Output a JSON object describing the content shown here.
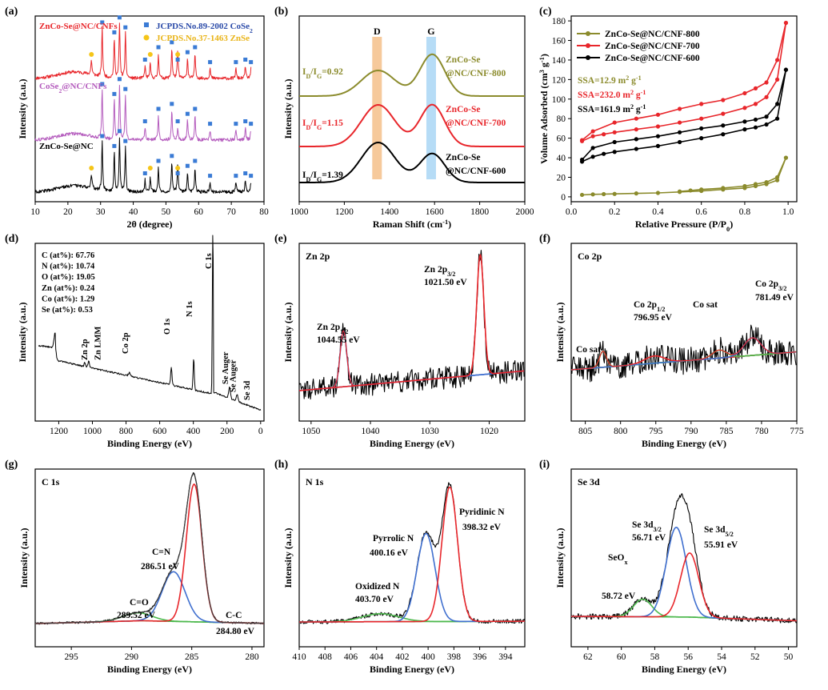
{
  "colors": {
    "black": "#000000",
    "red": "#e8262b",
    "purple": "#b45bbd",
    "olive": "#8b8b2c",
    "blue": "#3f6fcf",
    "green": "#4cb84c",
    "navy": "#2a4aa8",
    "marker_blue": "#3a7bd5",
    "marker_yellow": "#f5c518",
    "orange_band": "#f5c08a",
    "blue_band": "#a9d6f5"
  },
  "panels": {
    "a": {
      "label": "(a)",
      "xlabel": "2θ (degree)",
      "ylabel": "Intensity (a.u.)",
      "xticks": [
        "10",
        "20",
        "30",
        "40",
        "50",
        "60",
        "70",
        "80"
      ],
      "xlim": [
        10,
        80
      ],
      "legend": [
        {
          "text": "JCPDS.No.89-2002 CoSe",
          "sub": "2",
          "marker": "square"
        },
        {
          "text": "JCPDS.No.37-1463 ZnSe",
          "sub": "",
          "marker": "circle"
        }
      ],
      "series": [
        {
          "name": "ZnCo-Se@NC/CNFs",
          "color_key": "red"
        },
        {
          "name": "CoSe",
          "name_sub": "2",
          "name_tail": "@NC/CNFs",
          "color_key": "purple"
        },
        {
          "name": "ZnCo-Se@NC",
          "color_key": "black"
        }
      ],
      "peaks_cose2": [
        30.5,
        34.2,
        35.8,
        37.6,
        43.6,
        47.7,
        51.8,
        53.6,
        56.6,
        58.9,
        63.5,
        71.4,
        74.3,
        76.0
      ],
      "peaks_znse": [
        27.2,
        45.2,
        53.6
      ]
    },
    "b": {
      "label": "(b)",
      "xlabel": "Raman Shift (cm",
      "xlabel_sup": "-1",
      "xlabel_tail": ")",
      "ylabel": "Intensity (a.u.)",
      "xticks": [
        "1000",
        "1200",
        "1400",
        "1600",
        "1800",
        "2000"
      ],
      "xlim": [
        1000,
        2000
      ],
      "bands": [
        "D",
        "G"
      ],
      "band_centers": [
        1345,
        1585
      ],
      "ratio_prefix": "I",
      "ratio_sub_d": "D",
      "ratio_sub_g": "G",
      "series": [
        {
          "line1": "ZnCo-Se",
          "line2": "@NC/CNF-800",
          "ratio": "=0.92",
          "color_key": "olive"
        },
        {
          "line1": "ZnCo-Se",
          "line2": "@NC/CNF-700",
          "ratio": "=1.15",
          "color_key": "red"
        },
        {
          "line1": "ZnCo-Se",
          "line2": "@NC/CNF-600",
          "ratio": "=1.39",
          "color_key": "black"
        }
      ]
    },
    "c": {
      "label": "(c)",
      "xlabel": "Relative Pressure (P/P",
      "xlabel_sub": "0",
      "xlabel_tail": ")",
      "ylabel": "Volume Adsorbed (cm",
      "ylabel_sup": "3",
      "ylabel_mid": " g",
      "ylabel_sup2": "-1",
      "ylabel_tail": ")",
      "xticks": [
        "0.0",
        "0.2",
        "0.4",
        "0.6",
        "0.8",
        "1.0"
      ],
      "yticks": [
        "0",
        "20",
        "40",
        "60",
        "80",
        "100",
        "120",
        "140",
        "160",
        "180"
      ],
      "xlim": [
        0,
        1.04
      ],
      "ylim": [
        -5,
        185
      ],
      "series": [
        {
          "name": "ZnCo-Se@NC/CNF-800",
          "color_key": "olive",
          "ssa": "SSA=12.9 m",
          "ssa_sup": "2",
          "ssa_mid": " g",
          "ssa_sup2": "-1",
          "ads": [
            [
              0.05,
              2
            ],
            [
              0.1,
              2.5
            ],
            [
              0.15,
              2.8
            ],
            [
              0.2,
              3
            ],
            [
              0.3,
              3.5
            ],
            [
              0.4,
              4
            ],
            [
              0.5,
              5
            ],
            [
              0.6,
              6
            ],
            [
              0.7,
              7.5
            ],
            [
              0.8,
              9
            ],
            [
              0.85,
              11
            ],
            [
              0.9,
              13
            ],
            [
              0.95,
              17
            ],
            [
              0.99,
              40
            ]
          ],
          "des": [
            [
              0.99,
              40
            ],
            [
              0.95,
              20
            ],
            [
              0.9,
              15
            ],
            [
              0.85,
              13
            ],
            [
              0.8,
              11
            ],
            [
              0.7,
              9
            ],
            [
              0.6,
              7.5
            ],
            [
              0.55,
              6.5
            ],
            [
              0.5,
              5.5
            ]
          ]
        },
        {
          "name": "ZnCo-Se@NC/CNF-700",
          "color_key": "red",
          "ssa": "SSA=232.0 m",
          "ssa_sup": "2",
          "ssa_mid": " g",
          "ssa_sup2": "-1",
          "ads": [
            [
              0.05,
              57
            ],
            [
              0.1,
              62
            ],
            [
              0.15,
              64
            ],
            [
              0.2,
              66
            ],
            [
              0.3,
              69
            ],
            [
              0.4,
              72
            ],
            [
              0.5,
              76
            ],
            [
              0.6,
              80
            ],
            [
              0.7,
              85
            ],
            [
              0.8,
              91
            ],
            [
              0.85,
              95
            ],
            [
              0.9,
              102
            ],
            [
              0.95,
              120
            ],
            [
              0.99,
              178
            ]
          ],
          "des": [
            [
              0.99,
              178
            ],
            [
              0.95,
              140
            ],
            [
              0.9,
              117
            ],
            [
              0.85,
              111
            ],
            [
              0.8,
              106
            ],
            [
              0.7,
              99
            ],
            [
              0.6,
              95
            ],
            [
              0.5,
              90
            ],
            [
              0.4,
              84
            ],
            [
              0.3,
              80
            ],
            [
              0.2,
              76
            ],
            [
              0.1,
              67
            ],
            [
              0.05,
              58
            ]
          ]
        },
        {
          "name": "ZnCo-Se@NC/CNF-600",
          "color_key": "black",
          "ssa": "SSA=161.9 m",
          "ssa_sup": "2",
          "ssa_mid": " g",
          "ssa_sup2": "-1",
          "ads": [
            [
              0.05,
              36
            ],
            [
              0.1,
              41
            ],
            [
              0.15,
              44
            ],
            [
              0.2,
              46
            ],
            [
              0.3,
              49
            ],
            [
              0.4,
              52
            ],
            [
              0.5,
              56
            ],
            [
              0.6,
              60
            ],
            [
              0.7,
              64
            ],
            [
              0.8,
              69
            ],
            [
              0.85,
              71
            ],
            [
              0.9,
              74
            ],
            [
              0.95,
              80
            ],
            [
              0.99,
              130
            ]
          ],
          "des": [
            [
              0.99,
              130
            ],
            [
              0.95,
              95
            ],
            [
              0.9,
              82
            ],
            [
              0.85,
              79
            ],
            [
              0.8,
              77
            ],
            [
              0.7,
              73
            ],
            [
              0.6,
              70
            ],
            [
              0.5,
              66
            ],
            [
              0.4,
              62
            ],
            [
              0.3,
              59
            ],
            [
              0.2,
              56
            ],
            [
              0.1,
              50
            ],
            [
              0.05,
              38
            ]
          ]
        }
      ]
    },
    "d": {
      "label": "(d)",
      "xlabel": "Binding Energy (eV)",
      "ylabel": "Intensity (a.u.)",
      "xticks": [
        "1200",
        "1000",
        "800",
        "600",
        "400",
        "200",
        "0"
      ],
      "xlim": [
        1340,
        -20
      ],
      "composition": [
        "C (at%): 67.76",
        "N (at%): 10.74",
        "O (at%): 19.05",
        "Zn (at%): 0.24",
        "Co (at%): 1.29",
        "Se (at%): 0.53"
      ],
      "peak_labels": [
        {
          "text": "Zn 2p",
          "x": 1022
        },
        {
          "text": "Zn LMM",
          "x": 1000
        },
        {
          "text": "Co 2p",
          "x": 780
        },
        {
          "text": "O 1s",
          "x": 531
        },
        {
          "text": "N 1s",
          "x": 398
        },
        {
          "text": "C 1s",
          "x": 284
        },
        {
          "text": "Se Auger",
          "x": 185
        },
        {
          "text": "Se Auger",
          "x": 140
        },
        {
          "text": "Se 3d",
          "x": 56
        }
      ]
    },
    "e": {
      "label": "(e)",
      "title": "Zn 2p",
      "xlabel": "Binding Energy (eV)",
      "ylabel": "Intensity (a.u.)",
      "xticks": [
        "1050",
        "1040",
        "1030",
        "1020"
      ],
      "xlim": [
        1052,
        1014
      ],
      "peaks": [
        {
          "name": "Zn 2p",
          "sub": "1/2",
          "value": "1044.55 eV",
          "center": 1044.55
        },
        {
          "name": "Zn 2p",
          "sub": "3/2",
          "value": "1021.50 eV",
          "center": 1021.5
        }
      ]
    },
    "f": {
      "label": "(f)",
      "title": "Co 2p",
      "xlabel": "Binding Energy (eV)",
      "ylabel": "Intensity (a.u.)",
      "xticks": [
        "805",
        "800",
        "795",
        "790",
        "785",
        "780",
        "775"
      ],
      "xlim": [
        807,
        775
      ],
      "peaks": [
        {
          "name": "Co sat",
          "sub": "",
          "value": "",
          "center": 802.5
        },
        {
          "name": "Co 2p",
          "sub": "1/2",
          "value": "796.95 eV",
          "center": 796.95
        },
        {
          "name": "Co sat",
          "sub": "",
          "value": "",
          "center": 786
        },
        {
          "name": "Co 2p",
          "sub": "3/2",
          "value": "781.49 eV",
          "center": 781.49
        }
      ]
    },
    "g": {
      "label": "(g)",
      "title": "C 1s",
      "xlabel": "Binding Energy (eV)",
      "ylabel": "Intensity (a.u.)",
      "xticks": [
        "295",
        "290",
        "285",
        "280"
      ],
      "xlim": [
        298,
        279
      ],
      "peaks": [
        {
          "name": "C=O",
          "value": "289.52 eV",
          "center": 289.52
        },
        {
          "name": "C=N",
          "value": "286.51 eV",
          "center": 286.51
        },
        {
          "name": "C-C",
          "value": "284.80 eV",
          "center": 284.8
        }
      ]
    },
    "h": {
      "label": "(h)",
      "title": "N 1s",
      "xlabel": "Binding Energy (eV)",
      "ylabel": "Intensity (a.u.)",
      "xticks": [
        "410",
        "408",
        "406",
        "404",
        "402",
        "400",
        "398",
        "396",
        "394"
      ],
      "xlim": [
        410,
        392.5
      ],
      "peaks": [
        {
          "name": "Oxidized N",
          "value": "403.70 eV",
          "center": 403.7
        },
        {
          "name": "Pyrrolic N",
          "value": "400.16 eV",
          "center": 400.16
        },
        {
          "name": "Pyridinic N",
          "value": "398.32 eV",
          "center": 398.32
        }
      ]
    },
    "i": {
      "label": "(i)",
      "title": "Se 3d",
      "xlabel": "Binding Energy (eV)",
      "ylabel": "Intensity (a.u.)",
      "xticks": [
        "62",
        "60",
        "58",
        "56",
        "54",
        "52",
        "50"
      ],
      "xlim": [
        63,
        49.5
      ],
      "peaks": [
        {
          "name": "SeO",
          "sub": "x",
          "value": "58.72 eV",
          "center": 58.72
        },
        {
          "name": "Se 3d",
          "sub": "3/2",
          "value": "56.71 eV",
          "center": 56.71
        },
        {
          "name": "Se 3d",
          "sub": "5/2",
          "value": "55.91 eV",
          "center": 55.91
        }
      ]
    }
  },
  "chart_data": [
    {
      "type": "line",
      "panel": "a",
      "xlabel": "2θ (degree)",
      "ylabel": "Intensity (a.u.)",
      "xlim": [
        10,
        80
      ],
      "series": [
        {
          "name": "ZnCo-Se@NC/CNFs"
        },
        {
          "name": "CoSe2@NC/CNFs"
        },
        {
          "name": "ZnCo-Se@NC"
        }
      ]
    },
    {
      "type": "line",
      "panel": "b",
      "xlabel": "Raman Shift (cm-1)",
      "ylabel": "Intensity (a.u.)",
      "xlim": [
        1000,
        2000
      ],
      "series": [
        {
          "name": "ZnCo-Se @NC/CNF-800",
          "ID_IG": 0.92
        },
        {
          "name": "ZnCo-Se @NC/CNF-700",
          "ID_IG": 1.15
        },
        {
          "name": "ZnCo-Se @NC/CNF-600",
          "ID_IG": 1.39
        }
      ]
    },
    {
      "type": "line",
      "panel": "c",
      "xlabel": "Relative Pressure (P/P0)",
      "ylabel": "Volume Adsorbed (cm3 g-1)",
      "xlim": [
        0,
        1
      ],
      "ylim": [
        0,
        180
      ],
      "series": [
        {
          "name": "ZnCo-Se@NC/CNF-800",
          "SSA": 12.9
        },
        {
          "name": "ZnCo-Se@NC/CNF-700",
          "SSA": 232.0
        },
        {
          "name": "ZnCo-Se@NC/CNF-600",
          "SSA": 161.9
        }
      ]
    },
    {
      "type": "line",
      "panel": "d",
      "xlabel": "Binding Energy (eV)",
      "ylabel": "Intensity (a.u.)",
      "xlim": [
        1300,
        0
      ],
      "composition_at_percent": {
        "C": 67.76,
        "N": 10.74,
        "O": 19.05,
        "Zn": 0.24,
        "Co": 1.29,
        "Se": 0.53
      }
    },
    {
      "type": "line",
      "panel": "e",
      "xlabel": "Binding Energy (eV)",
      "peaks_eV": [
        1044.55,
        1021.5
      ]
    },
    {
      "type": "line",
      "panel": "f",
      "xlabel": "Binding Energy (eV)",
      "peaks_eV": [
        796.95,
        781.49
      ]
    },
    {
      "type": "line",
      "panel": "g",
      "xlabel": "Binding Energy (eV)",
      "peaks_eV": [
        289.52,
        286.51,
        284.8
      ]
    },
    {
      "type": "line",
      "panel": "h",
      "xlabel": "Binding Energy (eV)",
      "peaks_eV": [
        403.7,
        400.16,
        398.32
      ]
    },
    {
      "type": "line",
      "panel": "i",
      "xlabel": "Binding Energy (eV)",
      "peaks_eV": [
        58.72,
        56.71,
        55.91
      ]
    }
  ]
}
